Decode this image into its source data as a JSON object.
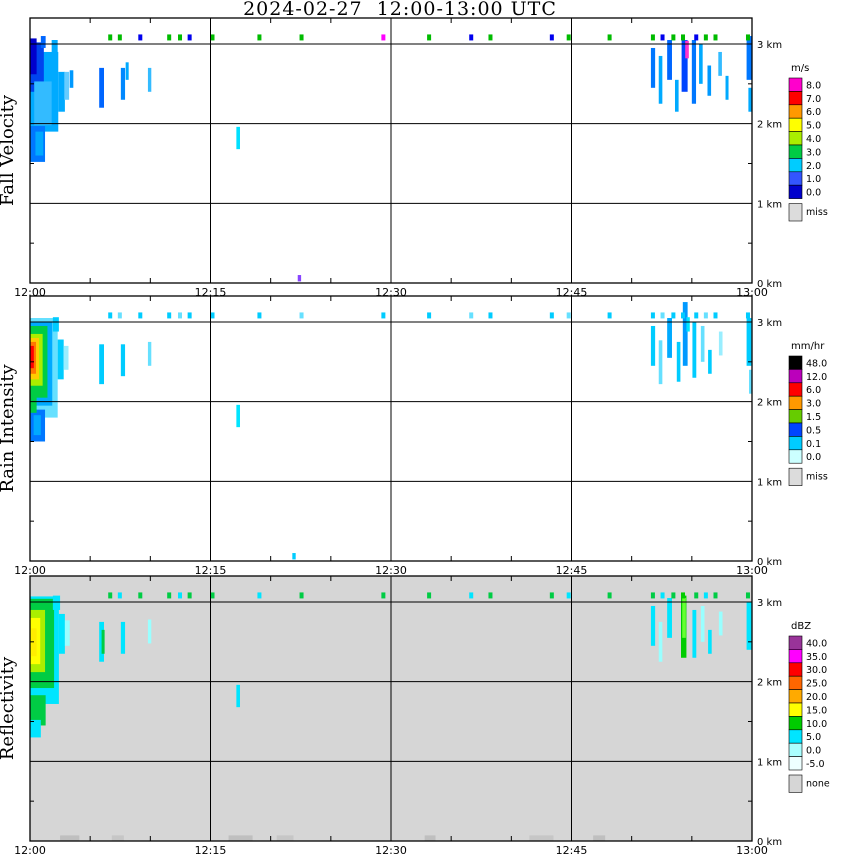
{
  "title": "2024-02-27  12:00-13:00 UTC",
  "chart_data": {
    "type": "heatmap",
    "description": "Radar time-height cross sections: three stacked panels (Fall Velocity, Rain Intensity, Reflectivity) over one hour",
    "x_axis": {
      "ticks": [
        "12:00",
        "12:15",
        "12:30",
        "12:45",
        "13:00"
      ],
      "minutes": [
        0,
        15,
        30,
        45,
        60
      ],
      "range_minutes": [
        0,
        60
      ]
    },
    "y_axis": {
      "ticks": [
        "3 km",
        "2 km",
        "1 km",
        "0 km"
      ],
      "km": [
        3,
        2,
        1,
        0
      ],
      "range_km": [
        0,
        3.33
      ]
    },
    "top_specks": {
      "height_km": 3.03,
      "times": [
        6.5,
        7.3,
        9.0,
        11.4,
        12.3,
        13.1,
        15.0,
        18.9,
        22.4,
        29.2,
        33.0,
        36.5,
        38.1,
        43.2,
        44.6,
        48.0,
        51.6,
        52.4,
        53.3,
        54.1,
        55.2,
        56.0,
        56.8,
        59.5
      ],
      "colors_by_panel": [
        [
          "#00bb00",
          "#00bb00",
          "#0000ee",
          "#00bb00",
          "#00bb00",
          "#0000ee",
          "#00bb00",
          "#00bb00",
          "#00bb00",
          "#ff00ff",
          "#00bb00",
          "#0000ee",
          "#00bb00",
          "#0000ee",
          "#00bb00",
          "#00bb00",
          "#00bb00",
          "#0000ee",
          "#00bb00",
          "#00bb00",
          "#0000ee",
          "#00bb00",
          "#00bb00",
          "#00bb00"
        ],
        [
          "#00ccff",
          "#66e0ff",
          "#00ccff",
          "#00ccff",
          "#66e0ff",
          "#00ccff",
          "#00ccff",
          "#00ccff",
          "#66e0ff",
          "#00ccff",
          "#00ccff",
          "#66e0ff",
          "#00ccff",
          "#00ccff",
          "#66e0ff",
          "#00ccff",
          "#00ccff",
          "#66e0ff",
          "#00ccff",
          "#00ccff",
          "#00ccff",
          "#66e0ff",
          "#00ccff",
          "#00ccff"
        ],
        [
          "#00cc44",
          "#00e5ff",
          "#00cc44",
          "#00cc44",
          "#00e5ff",
          "#00cc44",
          "#00cc44",
          "#00e5ff",
          "#00cc44",
          "#00cc44",
          "#00cc44",
          "#00e5ff",
          "#00cc44",
          "#00cc44",
          "#00e5ff",
          "#00cc44",
          "#00cc44",
          "#00e5ff",
          "#00cc44",
          "#00cc00",
          "#00cc44",
          "#00e5ff",
          "#00cc44",
          "#00cc44"
        ]
      ]
    },
    "panels": [
      {
        "name": "Fall Velocity",
        "unit": "m/s",
        "background": "#ffffff",
        "legend": {
          "title": "m/s",
          "items": [
            {
              "label": "8.0",
              "color": "#ff00cc"
            },
            {
              "label": "7.0",
              "color": "#ff0000"
            },
            {
              "label": "6.0",
              "color": "#ff9900"
            },
            {
              "label": "5.0",
              "color": "#ffff00"
            },
            {
              "label": "4.0",
              "color": "#aaee00"
            },
            {
              "label": "3.0",
              "color": "#00cc44"
            },
            {
              "label": "2.0",
              "color": "#00ccff"
            },
            {
              "label": "1.0",
              "color": "#3355ff"
            },
            {
              "label": "0.0",
              "color": "#0000cc"
            }
          ],
          "missing": {
            "label": "miss",
            "color": "#dcdcdc"
          }
        },
        "echoes": [
          [
            0.0,
            1.9,
            2.35,
            1.0,
            "#00aaff"
          ],
          [
            0.0,
            2.4,
            1.15,
            0.62,
            "#0044ee"
          ],
          [
            0.0,
            2.62,
            0.55,
            0.45,
            "#0000cc"
          ],
          [
            0.35,
            1.98,
            1.45,
            0.55,
            "#33bbff"
          ],
          [
            0.0,
            1.52,
            1.25,
            0.45,
            "#0077ff"
          ],
          [
            0.45,
            1.6,
            0.65,
            0.3,
            "#00aaff"
          ],
          [
            2.35,
            2.15,
            0.55,
            0.5,
            "#00aaff"
          ],
          [
            2.85,
            2.3,
            0.4,
            0.35,
            "#66ccff"
          ],
          [
            3.3,
            2.45,
            0.3,
            0.22,
            "#0099ff"
          ],
          [
            1.8,
            2.85,
            0.5,
            0.2,
            "#00aaff"
          ],
          [
            0.9,
            2.95,
            0.4,
            0.15,
            "#0066ff"
          ],
          [
            5.75,
            2.2,
            0.4,
            0.5,
            "#0066ff"
          ],
          [
            7.55,
            2.3,
            0.35,
            0.4,
            "#0088ff"
          ],
          [
            7.95,
            2.55,
            0.25,
            0.22,
            "#00aaff"
          ],
          [
            9.8,
            2.4,
            0.28,
            0.3,
            "#33bbff"
          ],
          [
            17.15,
            1.68,
            0.3,
            0.28,
            "#00e0ff"
          ],
          [
            22.25,
            0.02,
            0.28,
            0.08,
            "#8844ff"
          ],
          [
            51.6,
            2.45,
            0.35,
            0.5,
            "#0077ff"
          ],
          [
            52.25,
            2.25,
            0.3,
            0.6,
            "#00aaff"
          ],
          [
            52.95,
            2.55,
            0.4,
            0.5,
            "#0066ff"
          ],
          [
            53.6,
            2.15,
            0.3,
            0.4,
            "#00aaff"
          ],
          [
            54.15,
            2.4,
            0.5,
            0.65,
            "#0044ff"
          ],
          [
            54.45,
            2.82,
            0.3,
            0.22,
            "#ff33cc"
          ],
          [
            55.0,
            2.25,
            0.35,
            0.8,
            "#0077ff"
          ],
          [
            55.6,
            2.5,
            0.3,
            0.5,
            "#00aaff"
          ],
          [
            56.3,
            2.35,
            0.3,
            0.38,
            "#0099ff"
          ],
          [
            57.2,
            2.6,
            0.3,
            0.3,
            "#33bbff"
          ],
          [
            57.8,
            2.3,
            0.25,
            0.3,
            "#00aaff"
          ],
          [
            59.55,
            2.55,
            0.45,
            0.55,
            "#0077ff"
          ],
          [
            59.7,
            2.15,
            0.3,
            0.3,
            "#00aaff"
          ]
        ]
      },
      {
        "name": "Rain Intensity",
        "unit": "mm/hr",
        "background": "#ffffff",
        "legend": {
          "title": "mm/hr",
          "items": [
            {
              "label": "48.0",
              "color": "#000000"
            },
            {
              "label": "12.0",
              "color": "#bb00bb"
            },
            {
              "label": "6.0",
              "color": "#ff0000"
            },
            {
              "label": "3.0",
              "color": "#ff9900"
            },
            {
              "label": "1.5",
              "color": "#66cc00"
            },
            {
              "label": "0.5",
              "color": "#0044ff"
            },
            {
              "label": "0.1",
              "color": "#00ccff"
            },
            {
              "label": "0.0",
              "color": "#ccffff"
            }
          ],
          "missing": {
            "label": "miss",
            "color": "#dcdcdc"
          }
        },
        "echoes": [
          [
            0.0,
            1.8,
            2.3,
            1.25,
            "#66e0ff"
          ],
          [
            0.0,
            1.95,
            1.85,
            1.05,
            "#00aaff"
          ],
          [
            0.0,
            2.05,
            1.45,
            0.9,
            "#00cc44"
          ],
          [
            0.0,
            2.2,
            1.05,
            0.65,
            "#aaee00"
          ],
          [
            0.0,
            2.28,
            0.75,
            0.52,
            "#ffcc00"
          ],
          [
            0.0,
            2.35,
            0.5,
            0.4,
            "#ff7700"
          ],
          [
            0.0,
            2.42,
            0.32,
            0.28,
            "#ff0000"
          ],
          [
            0.0,
            1.5,
            1.25,
            0.4,
            "#0077ff"
          ],
          [
            0.3,
            1.58,
            0.6,
            0.25,
            "#00aaff"
          ],
          [
            0.0,
            1.86,
            0.55,
            0.3,
            "#00cc44"
          ],
          [
            2.3,
            2.28,
            0.5,
            0.5,
            "#00ccff"
          ],
          [
            2.8,
            2.4,
            0.4,
            0.3,
            "#99eeff"
          ],
          [
            1.9,
            2.88,
            0.5,
            0.18,
            "#00ccff"
          ],
          [
            5.75,
            2.22,
            0.4,
            0.5,
            "#00ccff"
          ],
          [
            7.55,
            2.32,
            0.35,
            0.4,
            "#00ccff"
          ],
          [
            9.8,
            2.45,
            0.28,
            0.3,
            "#66e0ff"
          ],
          [
            17.15,
            1.68,
            0.3,
            0.28,
            "#00e5ff"
          ],
          [
            21.8,
            0.02,
            0.28,
            0.08,
            "#00ccff"
          ],
          [
            51.6,
            2.45,
            0.35,
            0.5,
            "#00ccff"
          ],
          [
            52.25,
            2.22,
            0.3,
            0.55,
            "#66e0ff"
          ],
          [
            52.95,
            2.55,
            0.4,
            0.5,
            "#00aaff"
          ],
          [
            53.75,
            2.25,
            0.3,
            0.5,
            "#00ccff"
          ],
          [
            54.25,
            2.45,
            0.4,
            0.8,
            "#0099ff"
          ],
          [
            54.55,
            2.88,
            0.28,
            0.18,
            "#00e5ff"
          ],
          [
            55.05,
            2.3,
            0.32,
            0.7,
            "#00ccff"
          ],
          [
            55.75,
            2.5,
            0.3,
            0.45,
            "#66e0ff"
          ],
          [
            56.35,
            2.35,
            0.3,
            0.3,
            "#00ccff"
          ],
          [
            57.25,
            2.58,
            0.3,
            0.3,
            "#99eeff"
          ],
          [
            59.55,
            2.45,
            0.4,
            0.6,
            "#00ccff"
          ],
          [
            59.75,
            2.1,
            0.25,
            0.3,
            "#66e0ff"
          ]
        ]
      },
      {
        "name": "Reflectivity",
        "unit": "dBZ",
        "background": "#d6d6d6",
        "legend": {
          "title": "dBZ",
          "items": [
            {
              "label": "40.0",
              "color": "#993399"
            },
            {
              "label": "35.0",
              "color": "#ff00ff"
            },
            {
              "label": "30.0",
              "color": "#ff0000"
            },
            {
              "label": "25.0",
              "color": "#ff6600"
            },
            {
              "label": "20.0",
              "color": "#ffaa00"
            },
            {
              "label": "15.0",
              "color": "#ffff00"
            },
            {
              "label": "10.0",
              "color": "#00cc00"
            },
            {
              "label": "5.0",
              "color": "#00e5ff"
            },
            {
              "label": "0.0",
              "color": "#aaffff"
            },
            {
              "label": "-5.0",
              "color": "#eeffff"
            }
          ],
          "missing": {
            "label": "none",
            "color": "#d6d6d6"
          }
        },
        "echoes": [
          [
            0.0,
            1.72,
            2.4,
            1.35,
            "#00e5ff"
          ],
          [
            0.0,
            1.92,
            2.0,
            1.12,
            "#00cc44"
          ],
          [
            0.0,
            2.12,
            1.25,
            0.78,
            "#aaee00"
          ],
          [
            0.0,
            2.22,
            0.85,
            0.58,
            "#ffff00"
          ],
          [
            0.1,
            2.32,
            0.45,
            0.35,
            "#ffee00"
          ],
          [
            0.0,
            1.45,
            1.3,
            0.38,
            "#00cc44"
          ],
          [
            0.0,
            1.3,
            0.9,
            0.22,
            "#00e5ff"
          ],
          [
            2.4,
            2.35,
            0.5,
            0.5,
            "#00e5ff"
          ],
          [
            2.9,
            2.45,
            0.4,
            0.32,
            "#99ffff"
          ],
          [
            1.9,
            2.9,
            0.6,
            0.18,
            "#00e5ff"
          ],
          [
            5.75,
            2.25,
            0.4,
            0.5,
            "#00e5ff"
          ],
          [
            5.95,
            2.35,
            0.25,
            0.3,
            "#00cc44"
          ],
          [
            7.55,
            2.35,
            0.35,
            0.4,
            "#00e5ff"
          ],
          [
            9.8,
            2.48,
            0.28,
            0.3,
            "#99ffff"
          ],
          [
            17.15,
            1.68,
            0.3,
            0.28,
            "#00e5ff"
          ],
          [
            2.5,
            0.0,
            1.6,
            0.07,
            "#bfbfbf"
          ],
          [
            6.8,
            0.0,
            1.0,
            0.07,
            "#c6c6c6"
          ],
          [
            16.5,
            0.0,
            2.0,
            0.07,
            "#bfbfbf"
          ],
          [
            20.5,
            0.0,
            1.4,
            0.07,
            "#c6c6c6"
          ],
          [
            32.8,
            0.0,
            0.9,
            0.07,
            "#bfbfbf"
          ],
          [
            41.5,
            0.0,
            2.0,
            0.07,
            "#c6c6c6"
          ],
          [
            46.8,
            0.0,
            1.0,
            0.07,
            "#bfbfbf"
          ],
          [
            51.6,
            2.45,
            0.35,
            0.5,
            "#00e5ff"
          ],
          [
            52.25,
            2.25,
            0.3,
            0.5,
            "#99ffff"
          ],
          [
            52.95,
            2.55,
            0.4,
            0.5,
            "#00e5ff"
          ],
          [
            54.1,
            2.3,
            0.45,
            0.78,
            "#00cc00"
          ],
          [
            54.2,
            2.55,
            0.3,
            0.5,
            "#66ff33"
          ],
          [
            55.05,
            2.3,
            0.32,
            0.6,
            "#00e5ff"
          ],
          [
            55.75,
            2.5,
            0.3,
            0.45,
            "#99ffff"
          ],
          [
            56.35,
            2.35,
            0.3,
            0.3,
            "#00e5ff"
          ],
          [
            57.25,
            2.58,
            0.3,
            0.3,
            "#99ffff"
          ],
          [
            59.55,
            2.4,
            0.4,
            0.6,
            "#00e5ff"
          ]
        ]
      }
    ]
  }
}
